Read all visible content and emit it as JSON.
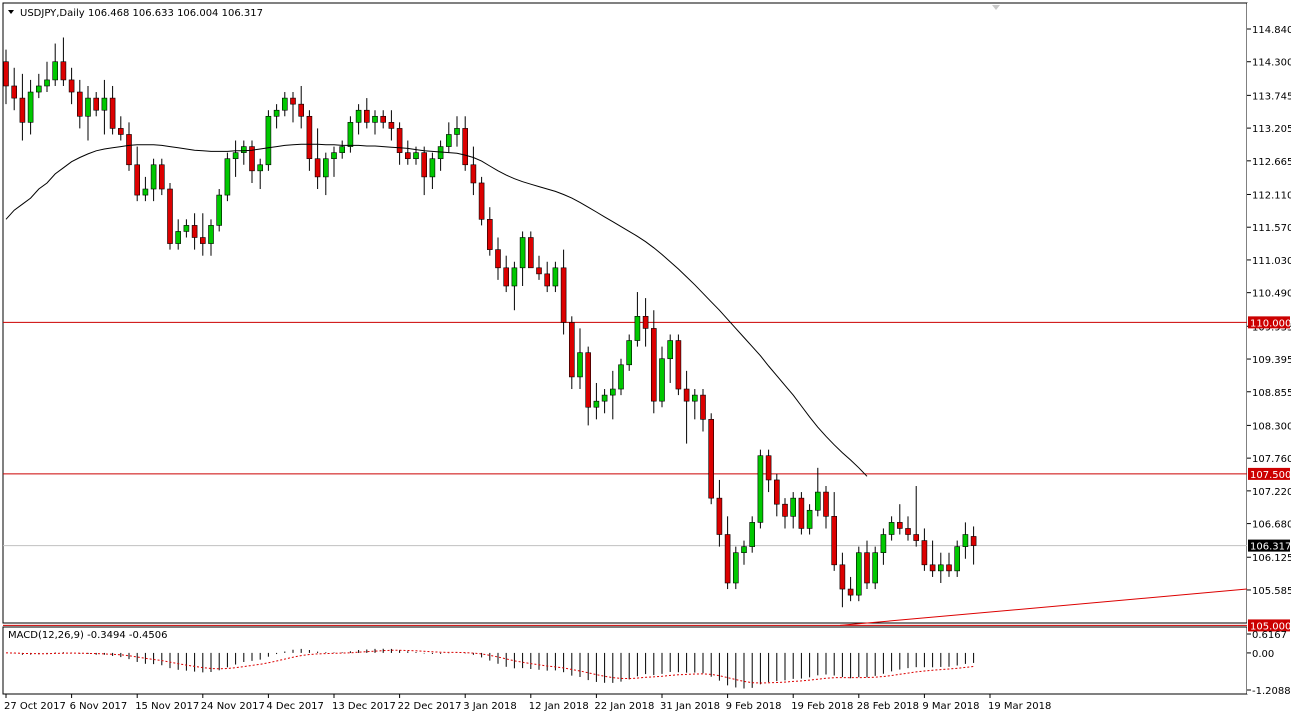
{
  "header": {
    "symbol": "USDJPY,Daily",
    "ohlc": "106.468 106.633 106.004 106.317"
  },
  "colors": {
    "bull": "#00c800",
    "bear": "#dc0000",
    "hline": "#cc0000",
    "trend": "#dc0000",
    "ma": "#000000",
    "grid": "#c0c0c0"
  },
  "chart_data": {
    "type": "candlestick",
    "symbol": "USDJPY",
    "timeframe": "Daily",
    "price_axis": {
      "min": 105.04,
      "max": 114.84,
      "ticks": [
        "114.840",
        "114.300",
        "113.745",
        "113.205",
        "112.665",
        "112.110",
        "111.570",
        "111.030",
        "110.490",
        "109.935",
        "109.395",
        "108.855",
        "108.300",
        "107.760",
        "107.220",
        "106.680",
        "106.125",
        "105.585"
      ]
    },
    "date_labels": [
      "27 Oct 2017",
      "6 Nov 2017",
      "15 Nov 2017",
      "24 Nov 2017",
      "4 Dec 2017",
      "13 Dec 2017",
      "22 Dec 2017",
      "3 Jan 2018",
      "12 Jan 2018",
      "22 Jan 2018",
      "31 Jan 2018",
      "9 Feb 2018",
      "19 Feb 2018",
      "28 Feb 2018",
      "9 Mar 2018",
      "19 Mar 2018"
    ],
    "horizontal_lines": [
      {
        "price": 110.0,
        "label": "110.000"
      },
      {
        "price": 107.5,
        "label": "107.500"
      },
      {
        "price": 105.0,
        "label": "105.000"
      }
    ],
    "current_price": {
      "price": 106.317,
      "label": "106.317"
    },
    "trendline": {
      "from": [
        0,
        105.0
      ],
      "to": [
        1,
        105.6
      ]
    },
    "candles": [
      {
        "o": 114.3,
        "h": 114.5,
        "l": 113.6,
        "c": 113.9
      },
      {
        "o": 113.9,
        "h": 114.2,
        "l": 113.5,
        "c": 113.7
      },
      {
        "o": 113.7,
        "h": 114.1,
        "l": 113.0,
        "c": 113.3
      },
      {
        "o": 113.3,
        "h": 114.0,
        "l": 113.1,
        "c": 113.8
      },
      {
        "o": 113.8,
        "h": 114.1,
        "l": 113.7,
        "c": 113.9
      },
      {
        "o": 113.9,
        "h": 114.3,
        "l": 113.8,
        "c": 114.0
      },
      {
        "o": 114.0,
        "h": 114.6,
        "l": 113.9,
        "c": 114.3
      },
      {
        "o": 114.3,
        "h": 114.7,
        "l": 113.9,
        "c": 114.0
      },
      {
        "o": 114.0,
        "h": 114.2,
        "l": 113.6,
        "c": 113.8
      },
      {
        "o": 113.8,
        "h": 114.0,
        "l": 113.2,
        "c": 113.4
      },
      {
        "o": 113.4,
        "h": 113.9,
        "l": 113.0,
        "c": 113.7
      },
      {
        "o": 113.7,
        "h": 113.8,
        "l": 113.4,
        "c": 113.5
      },
      {
        "o": 113.5,
        "h": 114.0,
        "l": 113.1,
        "c": 113.7
      },
      {
        "o": 113.7,
        "h": 113.9,
        "l": 113.1,
        "c": 113.2
      },
      {
        "o": 113.2,
        "h": 113.4,
        "l": 113.0,
        "c": 113.1
      },
      {
        "o": 113.1,
        "h": 113.3,
        "l": 112.5,
        "c": 112.6
      },
      {
        "o": 112.6,
        "h": 112.9,
        "l": 112.0,
        "c": 112.1
      },
      {
        "o": 112.1,
        "h": 112.4,
        "l": 112.0,
        "c": 112.2
      },
      {
        "o": 112.2,
        "h": 112.7,
        "l": 112.0,
        "c": 112.6
      },
      {
        "o": 112.6,
        "h": 112.7,
        "l": 112.1,
        "c": 112.2
      },
      {
        "o": 112.2,
        "h": 112.3,
        "l": 111.2,
        "c": 111.3
      },
      {
        "o": 111.3,
        "h": 111.7,
        "l": 111.2,
        "c": 111.5
      },
      {
        "o": 111.5,
        "h": 111.7,
        "l": 111.4,
        "c": 111.6
      },
      {
        "o": 111.6,
        "h": 111.8,
        "l": 111.2,
        "c": 111.4
      },
      {
        "o": 111.4,
        "h": 111.8,
        "l": 111.1,
        "c": 111.3
      },
      {
        "o": 111.3,
        "h": 111.7,
        "l": 111.1,
        "c": 111.6
      },
      {
        "o": 111.6,
        "h": 112.2,
        "l": 111.5,
        "c": 112.1
      },
      {
        "o": 112.1,
        "h": 112.8,
        "l": 112.0,
        "c": 112.7
      },
      {
        "o": 112.7,
        "h": 113.0,
        "l": 112.4,
        "c": 112.8
      },
      {
        "o": 112.8,
        "h": 113.0,
        "l": 112.6,
        "c": 112.9
      },
      {
        "o": 112.9,
        "h": 113.0,
        "l": 112.3,
        "c": 112.5
      },
      {
        "o": 112.5,
        "h": 112.7,
        "l": 112.2,
        "c": 112.6
      },
      {
        "o": 112.6,
        "h": 113.5,
        "l": 112.5,
        "c": 113.4
      },
      {
        "o": 113.4,
        "h": 113.6,
        "l": 113.2,
        "c": 113.5
      },
      {
        "o": 113.5,
        "h": 113.8,
        "l": 113.4,
        "c": 113.7
      },
      {
        "o": 113.7,
        "h": 113.8,
        "l": 113.3,
        "c": 113.6
      },
      {
        "o": 113.6,
        "h": 113.9,
        "l": 113.2,
        "c": 113.4
      },
      {
        "o": 113.4,
        "h": 113.5,
        "l": 112.5,
        "c": 112.7
      },
      {
        "o": 112.7,
        "h": 113.2,
        "l": 112.2,
        "c": 112.4
      },
      {
        "o": 112.4,
        "h": 112.8,
        "l": 112.1,
        "c": 112.7
      },
      {
        "o": 112.7,
        "h": 112.9,
        "l": 112.4,
        "c": 112.8
      },
      {
        "o": 112.8,
        "h": 113.0,
        "l": 112.7,
        "c": 112.9
      },
      {
        "o": 112.9,
        "h": 113.4,
        "l": 112.8,
        "c": 113.3
      },
      {
        "o": 113.3,
        "h": 113.6,
        "l": 113.1,
        "c": 113.5
      },
      {
        "o": 113.5,
        "h": 113.7,
        "l": 113.2,
        "c": 113.3
      },
      {
        "o": 113.3,
        "h": 113.5,
        "l": 113.1,
        "c": 113.4
      },
      {
        "o": 113.4,
        "h": 113.5,
        "l": 113.2,
        "c": 113.3
      },
      {
        "o": 113.3,
        "h": 113.5,
        "l": 113.0,
        "c": 113.2
      },
      {
        "o": 113.2,
        "h": 113.3,
        "l": 112.6,
        "c": 112.8
      },
      {
        "o": 112.8,
        "h": 113.0,
        "l": 112.6,
        "c": 112.7
      },
      {
        "o": 112.7,
        "h": 112.9,
        "l": 112.6,
        "c": 112.8
      },
      {
        "o": 112.8,
        "h": 112.9,
        "l": 112.1,
        "c": 112.4
      },
      {
        "o": 112.4,
        "h": 112.8,
        "l": 112.2,
        "c": 112.7
      },
      {
        "o": 112.7,
        "h": 113.0,
        "l": 112.5,
        "c": 112.9
      },
      {
        "o": 112.9,
        "h": 113.3,
        "l": 112.8,
        "c": 113.1
      },
      {
        "o": 113.1,
        "h": 113.4,
        "l": 112.9,
        "c": 113.2
      },
      {
        "o": 113.2,
        "h": 113.4,
        "l": 112.5,
        "c": 112.6
      },
      {
        "o": 112.6,
        "h": 112.9,
        "l": 112.1,
        "c": 112.3
      },
      {
        "o": 112.3,
        "h": 112.4,
        "l": 111.6,
        "c": 111.7
      },
      {
        "o": 111.7,
        "h": 111.9,
        "l": 111.1,
        "c": 111.2
      },
      {
        "o": 111.2,
        "h": 111.4,
        "l": 110.7,
        "c": 110.9
      },
      {
        "o": 110.9,
        "h": 111.1,
        "l": 110.5,
        "c": 110.6
      },
      {
        "o": 110.6,
        "h": 111.0,
        "l": 110.2,
        "c": 110.9
      },
      {
        "o": 110.9,
        "h": 111.5,
        "l": 110.6,
        "c": 111.4
      },
      {
        "o": 111.4,
        "h": 111.5,
        "l": 110.9,
        "c": 110.9
      },
      {
        "o": 110.9,
        "h": 111.1,
        "l": 110.7,
        "c": 110.8
      },
      {
        "o": 110.8,
        "h": 111.0,
        "l": 110.5,
        "c": 110.6
      },
      {
        "o": 110.6,
        "h": 111.0,
        "l": 110.5,
        "c": 110.9
      },
      {
        "o": 110.9,
        "h": 111.2,
        "l": 109.8,
        "c": 110.0
      },
      {
        "o": 110.0,
        "h": 110.1,
        "l": 108.9,
        "c": 109.1
      },
      {
        "o": 109.1,
        "h": 109.9,
        "l": 108.9,
        "c": 109.5
      },
      {
        "o": 109.5,
        "h": 109.6,
        "l": 108.3,
        "c": 108.6
      },
      {
        "o": 108.6,
        "h": 109.0,
        "l": 108.4,
        "c": 108.7
      },
      {
        "o": 108.7,
        "h": 108.9,
        "l": 108.5,
        "c": 108.8
      },
      {
        "o": 108.8,
        "h": 109.2,
        "l": 108.4,
        "c": 108.9
      },
      {
        "o": 108.9,
        "h": 109.4,
        "l": 108.8,
        "c": 109.3
      },
      {
        "o": 109.3,
        "h": 109.8,
        "l": 109.2,
        "c": 109.7
      },
      {
        "o": 109.7,
        "h": 110.5,
        "l": 109.6,
        "c": 110.1
      },
      {
        "o": 110.1,
        "h": 110.4,
        "l": 109.6,
        "c": 109.9
      },
      {
        "o": 109.9,
        "h": 110.2,
        "l": 108.5,
        "c": 108.7
      },
      {
        "o": 108.7,
        "h": 109.6,
        "l": 108.6,
        "c": 109.4
      },
      {
        "o": 109.4,
        "h": 109.8,
        "l": 109.0,
        "c": 109.7
      },
      {
        "o": 109.7,
        "h": 109.8,
        "l": 108.8,
        "c": 108.9
      },
      {
        "o": 108.9,
        "h": 109.2,
        "l": 108.0,
        "c": 108.7
      },
      {
        "o": 108.7,
        "h": 108.9,
        "l": 108.4,
        "c": 108.8
      },
      {
        "o": 108.8,
        "h": 108.9,
        "l": 108.2,
        "c": 108.4
      },
      {
        "o": 108.4,
        "h": 108.5,
        "l": 107.0,
        "c": 107.1
      },
      {
        "o": 107.1,
        "h": 107.4,
        "l": 106.3,
        "c": 106.5
      },
      {
        "o": 106.5,
        "h": 106.8,
        "l": 105.6,
        "c": 105.7
      },
      {
        "o": 105.7,
        "h": 106.3,
        "l": 105.6,
        "c": 106.2
      },
      {
        "o": 106.2,
        "h": 106.4,
        "l": 106.0,
        "c": 106.3
      },
      {
        "o": 106.3,
        "h": 106.8,
        "l": 106.2,
        "c": 106.7
      },
      {
        "o": 106.7,
        "h": 107.9,
        "l": 106.6,
        "c": 107.8
      },
      {
        "o": 107.8,
        "h": 107.9,
        "l": 107.2,
        "c": 107.4
      },
      {
        "o": 107.4,
        "h": 107.5,
        "l": 106.8,
        "c": 107.0
      },
      {
        "o": 107.0,
        "h": 107.1,
        "l": 106.6,
        "c": 106.8
      },
      {
        "o": 106.8,
        "h": 107.2,
        "l": 106.6,
        "c": 107.1
      },
      {
        "o": 107.1,
        "h": 107.2,
        "l": 106.5,
        "c": 106.6
      },
      {
        "o": 106.6,
        "h": 107.0,
        "l": 106.5,
        "c": 106.9
      },
      {
        "o": 106.9,
        "h": 107.6,
        "l": 106.8,
        "c": 107.2
      },
      {
        "o": 107.2,
        "h": 107.3,
        "l": 106.6,
        "c": 106.8
      },
      {
        "o": 106.8,
        "h": 107.2,
        "l": 105.9,
        "c": 106.0
      },
      {
        "o": 106.0,
        "h": 106.2,
        "l": 105.3,
        "c": 105.6
      },
      {
        "o": 105.6,
        "h": 105.8,
        "l": 105.4,
        "c": 105.5
      },
      {
        "o": 105.5,
        "h": 106.3,
        "l": 105.4,
        "c": 106.2
      },
      {
        "o": 106.2,
        "h": 106.4,
        "l": 105.6,
        "c": 105.7
      },
      {
        "o": 105.7,
        "h": 106.3,
        "l": 105.6,
        "c": 106.2
      },
      {
        "o": 106.2,
        "h": 106.6,
        "l": 106.0,
        "c": 106.5
      },
      {
        "o": 106.5,
        "h": 106.8,
        "l": 106.4,
        "c": 106.7
      },
      {
        "o": 106.7,
        "h": 107.0,
        "l": 106.5,
        "c": 106.6
      },
      {
        "o": 106.6,
        "h": 106.8,
        "l": 106.4,
        "c": 106.5
      },
      {
        "o": 106.5,
        "h": 107.3,
        "l": 106.3,
        "c": 106.4
      },
      {
        "o": 106.4,
        "h": 106.6,
        "l": 105.9,
        "c": 106.0
      },
      {
        "o": 106.0,
        "h": 106.4,
        "l": 105.8,
        "c": 105.9
      },
      {
        "o": 105.9,
        "h": 106.2,
        "l": 105.7,
        "c": 106.0
      },
      {
        "o": 106.0,
        "h": 106.2,
        "l": 105.8,
        "c": 105.9
      },
      {
        "o": 105.9,
        "h": 106.4,
        "l": 105.8,
        "c": 106.3
      },
      {
        "o": 106.3,
        "h": 106.7,
        "l": 106.1,
        "c": 106.5
      },
      {
        "o": 106.468,
        "h": 106.633,
        "l": 106.004,
        "c": 106.317
      }
    ],
    "ma": [
      111.7,
      111.85,
      111.95,
      112.05,
      112.2,
      112.3,
      112.45,
      112.55,
      112.65,
      112.72,
      112.78,
      112.83,
      112.86,
      112.88,
      112.9,
      112.92,
      112.93,
      112.93,
      112.93,
      112.92,
      112.9,
      112.88,
      112.86,
      112.84,
      112.83,
      112.82,
      112.82,
      112.82,
      112.83,
      112.83,
      112.84,
      112.86,
      112.88,
      112.9,
      112.92,
      112.93,
      112.94,
      112.94,
      112.94,
      112.93,
      112.93,
      112.92,
      112.92,
      112.92,
      112.91,
      112.91,
      112.9,
      112.89,
      112.88,
      112.87,
      112.85,
      112.83,
      112.82,
      112.81,
      112.8,
      112.79,
      112.76,
      112.72,
      112.66,
      112.58,
      112.5,
      112.43,
      112.37,
      112.32,
      112.28,
      112.24,
      112.2,
      112.16,
      112.11,
      112.05,
      111.98,
      111.9,
      111.82,
      111.74,
      111.66,
      111.58,
      111.5,
      111.42,
      111.33,
      111.23,
      111.12,
      111.0,
      110.88,
      110.75,
      110.62,
      110.48,
      110.34,
      110.2,
      110.05,
      109.9,
      109.75,
      109.6,
      109.45,
      109.28,
      109.12,
      108.96,
      108.8,
      108.62,
      108.44,
      108.27,
      108.12,
      107.98,
      107.85,
      107.73,
      107.6,
      107.46
    ],
    "macd_indicator": {
      "label": "MACD(12,26,9) -0.3494 -0.4506",
      "axis_ticks": [
        "0.6167",
        "0.00",
        "-1.2088"
      ],
      "min": -1.2088,
      "max": 0.6167
    }
  }
}
